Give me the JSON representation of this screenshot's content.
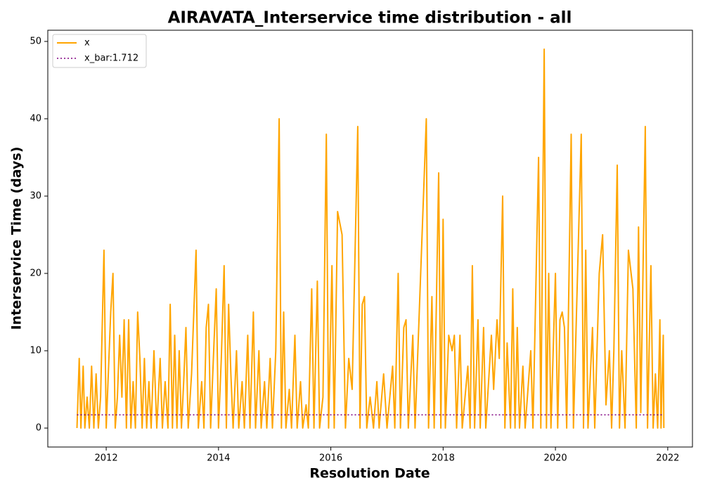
{
  "chart_data": {
    "type": "line",
    "title": "AIRAVATA_Interservice time distribution - all",
    "xlabel": "Resolution Date",
    "ylabel": "Interservice Time (days)",
    "xlim": [
      2010.96,
      2022.44
    ],
    "ylim": [
      -2.45,
      51.45
    ],
    "xticks": [
      2012,
      2014,
      2016,
      2018,
      2020,
      2022
    ],
    "yticks": [
      0,
      10,
      20,
      30,
      40,
      50
    ],
    "grid": false,
    "legend": "upper left",
    "series": [
      {
        "name": "x",
        "color": "#ffa500",
        "style": "solid",
        "x": [
          2011.48,
          2011.52,
          2011.55,
          2011.59,
          2011.62,
          2011.66,
          2011.7,
          2011.74,
          2011.78,
          2011.82,
          2011.86,
          2011.9,
          2011.96,
          2012.0,
          2012.08,
          2012.12,
          2012.16,
          2012.2,
          2012.24,
          2012.28,
          2012.32,
          2012.36,
          2012.4,
          2012.44,
          2012.48,
          2012.52,
          2012.56,
          2012.6,
          2012.64,
          2012.68,
          2012.72,
          2012.76,
          2012.8,
          2012.85,
          2012.9,
          2012.96,
          2013.0,
          2013.05,
          2013.1,
          2013.14,
          2013.18,
          2013.22,
          2013.26,
          2013.3,
          2013.34,
          2013.38,
          2013.42,
          2013.46,
          2013.52,
          2013.6,
          2013.64,
          2013.7,
          2013.74,
          2013.78,
          2013.82,
          2013.86,
          2013.92,
          2013.96,
          2014.0,
          2014.05,
          2014.1,
          2014.14,
          2014.18,
          2014.22,
          2014.26,
          2014.32,
          2014.36,
          2014.42,
          2014.46,
          2014.52,
          2014.56,
          2014.62,
          2014.66,
          2014.72,
          2014.76,
          2014.82,
          2014.86,
          2014.92,
          2014.96,
          2015.02,
          2015.08,
          2015.12,
          2015.16,
          2015.2,
          2015.26,
          2015.3,
          2015.36,
          2015.4,
          2015.46,
          2015.5,
          2015.56,
          2015.6,
          2015.66,
          2015.7,
          2015.76,
          2015.8,
          2015.86,
          2015.92,
          2015.96,
          2016.02,
          2016.06,
          2016.12,
          2016.2,
          2016.26,
          2016.32,
          2016.38,
          2016.48,
          2016.52,
          2016.56,
          2016.6,
          2016.64,
          2016.7,
          2016.76,
          2016.82,
          2016.86,
          2016.94,
          2017.0,
          2017.1,
          2017.14,
          2017.2,
          2017.24,
          2017.3,
          2017.34,
          2017.38,
          2017.46,
          2017.5,
          2017.7,
          2017.74,
          2017.8,
          2017.84,
          2017.92,
          2017.96,
          2018.0,
          2018.04,
          2018.1,
          2018.16,
          2018.2,
          2018.24,
          2018.3,
          2018.34,
          2018.44,
          2018.48,
          2018.52,
          2018.56,
          2018.62,
          2018.66,
          2018.72,
          2018.76,
          2018.86,
          2018.9,
          2018.96,
          2019.0,
          2019.06,
          2019.1,
          2019.14,
          2019.2,
          2019.24,
          2019.28,
          2019.32,
          2019.36,
          2019.42,
          2019.46,
          2019.56,
          2019.6,
          2019.7,
          2019.74,
          2019.8,
          2019.84,
          2019.88,
          2019.92,
          2020.0,
          2020.04,
          2020.08,
          2020.12,
          2020.16,
          2020.2,
          2020.28,
          2020.32,
          2020.46,
          2020.5,
          2020.54,
          2020.58,
          2020.66,
          2020.7,
          2020.78,
          2020.84,
          2020.9,
          2020.96,
          2021.0,
          2021.04,
          2021.1,
          2021.14,
          2021.18,
          2021.24,
          2021.3,
          2021.38,
          2021.44,
          2021.48,
          2021.52,
          2021.6,
          2021.64,
          2021.7,
          2021.74,
          2021.78,
          2021.82,
          2021.86,
          2021.88,
          2021.92,
          2021.93
        ],
        "values": [
          0,
          9,
          0,
          8,
          0,
          4,
          0,
          8,
          0,
          7,
          0,
          4,
          23,
          0,
          15,
          20,
          0,
          4,
          12,
          4,
          14,
          0,
          14,
          0,
          6,
          0,
          15,
          9,
          0,
          9,
          0,
          6,
          0,
          10,
          0,
          9,
          0,
          6,
          0,
          16,
          0,
          12,
          0,
          10,
          0,
          6,
          13,
          0,
          7,
          23,
          0,
          6,
          0,
          13,
          16,
          0,
          11,
          18,
          0,
          9,
          21,
          0,
          16,
          7,
          0,
          10,
          0,
          6,
          0,
          12,
          0,
          15,
          0,
          10,
          0,
          6,
          0,
          9,
          0,
          10,
          40,
          0,
          15,
          0,
          5,
          0,
          12,
          0,
          6,
          0,
          3,
          0,
          18,
          0,
          19,
          0,
          4,
          38,
          0,
          21,
          0,
          28,
          25,
          0,
          9,
          5,
          39,
          0,
          16,
          17,
          0,
          4,
          0,
          6,
          0,
          7,
          0,
          8,
          0,
          20,
          0,
          13,
          14,
          0,
          12,
          0,
          40,
          0,
          17,
          0,
          33,
          0,
          27,
          0,
          12,
          10,
          12,
          0,
          12,
          0,
          8,
          0,
          21,
          0,
          14,
          0,
          13,
          0,
          12,
          5,
          14,
          9,
          30,
          0,
          11,
          0,
          18,
          0,
          13,
          0,
          8,
          0,
          10,
          0,
          35,
          0,
          49,
          0,
          20,
          0,
          20,
          0,
          14,
          15,
          13,
          0,
          38,
          0,
          38,
          0,
          23,
          0,
          13,
          0,
          20,
          25,
          3,
          10,
          0,
          10,
          34,
          0,
          10,
          0,
          23,
          18,
          0,
          26,
          2,
          39,
          0,
          21,
          0,
          7,
          0,
          14,
          0,
          12,
          0
        ]
      },
      {
        "name": "x_bar:1.712",
        "color": "#800080",
        "style": "dotted",
        "x": [
          2011.48,
          2021.93
        ],
        "values": [
          1.712,
          1.712
        ]
      }
    ]
  }
}
